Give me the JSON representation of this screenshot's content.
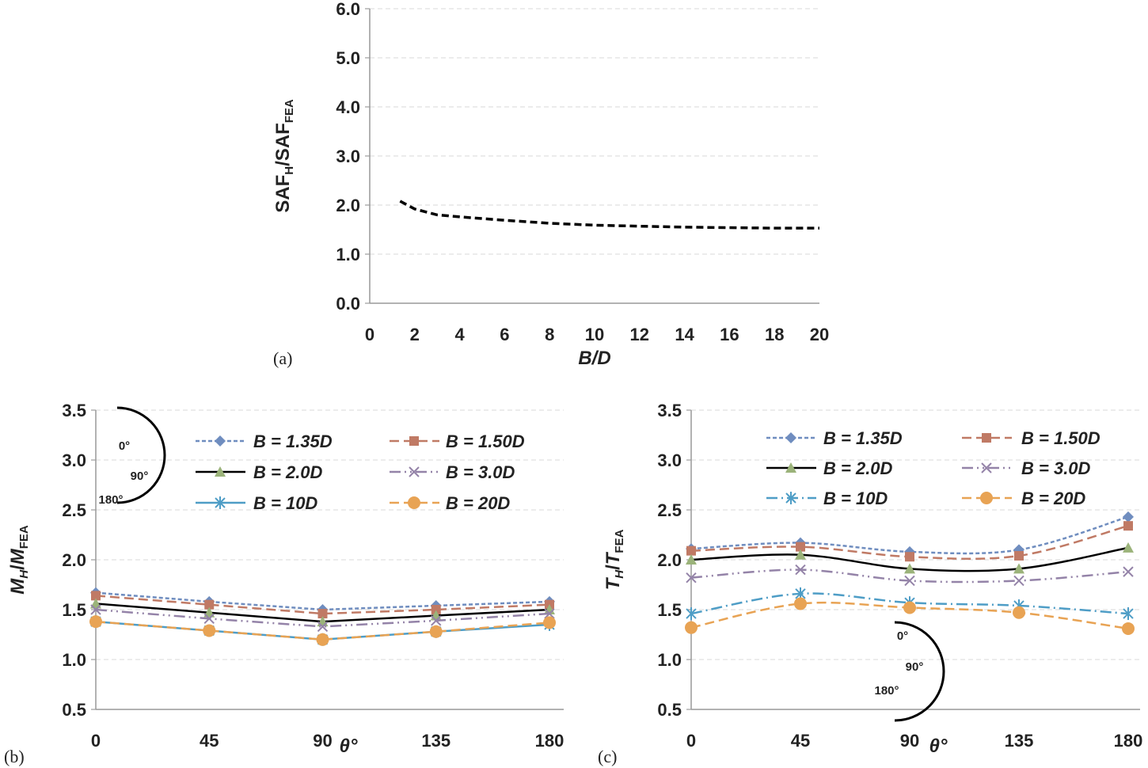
{
  "chart_data": [
    {
      "panel": "(a)",
      "type": "line",
      "xlabel": "B/D",
      "ylabel": [
        [
          "SAF",
          ""
        ],
        [
          "H",
          "sub"
        ],
        [
          "/SAF",
          ""
        ],
        [
          "FEA",
          "sub"
        ]
      ],
      "xlim": [
        0,
        20
      ],
      "ylim": [
        0,
        6
      ],
      "xticks": [
        0,
        2,
        4,
        6,
        8,
        10,
        12,
        14,
        16,
        18,
        20
      ],
      "yticks": [
        "0.0",
        "1.0",
        "2.0",
        "3.0",
        "4.0",
        "5.0",
        "6.0"
      ],
      "grid": true,
      "series": [
        {
          "color": "#000000",
          "style": "dashed",
          "x": [
            1.35,
            2,
            3,
            4,
            6,
            8,
            10,
            12,
            14,
            16,
            18,
            20
          ],
          "y": [
            2.08,
            1.92,
            1.8,
            1.76,
            1.69,
            1.63,
            1.59,
            1.57,
            1.55,
            1.54,
            1.53,
            1.53
          ]
        }
      ]
    },
    {
      "panel": "(b)",
      "type": "line",
      "xlabel": "θ°",
      "ylabel": [
        [
          "M",
          "it"
        ],
        [
          "H",
          "subit"
        ],
        [
          "/",
          ""
        ],
        [
          "M",
          "it"
        ],
        [
          "FEA",
          "sub"
        ]
      ],
      "xlim": [
        0,
        180
      ],
      "ylim": [
        0.5,
        3.5
      ],
      "x": [
        0,
        45,
        90,
        135,
        180
      ],
      "xticks": [
        0,
        45,
        90,
        135,
        180
      ],
      "yticks": [
        "0.5",
        "1.0",
        "1.5",
        "2.0",
        "2.5",
        "3.0",
        "3.5"
      ],
      "grid": true,
      "angle_labels": [
        "0°",
        "90°",
        "180°"
      ],
      "legend": "top-right",
      "series": [
        {
          "name": "B = 1.35D",
          "marker": "diamond",
          "color": "#6f8dbf",
          "dash": "5 3",
          "y": [
            1.67,
            1.58,
            1.5,
            1.54,
            1.58
          ]
        },
        {
          "name": "B = 1.50D",
          "marker": "square",
          "color": "#c07a65",
          "dash": "12 6",
          "y": [
            1.64,
            1.55,
            1.46,
            1.5,
            1.55
          ]
        },
        {
          "name": "B = 2.0D",
          "marker": "triangle",
          "color": "#9bb37a",
          "line": "#000000",
          "dash": "",
          "y": [
            1.56,
            1.47,
            1.38,
            1.44,
            1.5
          ]
        },
        {
          "name": "B = 3.0D",
          "marker": "x",
          "color": "#9483a8",
          "dash": "14 5 2 5 2 5",
          "y": [
            1.5,
            1.41,
            1.33,
            1.39,
            1.46
          ]
        },
        {
          "name": "B = 10D",
          "marker": "asterisk",
          "color": "#4e9dc6",
          "dash": "",
          "y": [
            1.38,
            1.29,
            1.2,
            1.28,
            1.35
          ]
        },
        {
          "name": "B = 20D",
          "marker": "circle",
          "color": "#e8a354",
          "dash": "12 6",
          "y": [
            1.38,
            1.29,
            1.2,
            1.28,
            1.37
          ]
        }
      ]
    },
    {
      "panel": "(c)",
      "type": "line",
      "xlabel": "θ°",
      "ylabel": [
        [
          "T",
          "it"
        ],
        [
          "H",
          "subit"
        ],
        [
          "/",
          ""
        ],
        [
          "T",
          "it"
        ],
        [
          "FEA",
          "sub"
        ]
      ],
      "xlim": [
        0,
        180
      ],
      "ylim": [
        0.5,
        3.5
      ],
      "x": [
        0,
        45,
        90,
        135,
        180
      ],
      "xticks": [
        0,
        45,
        90,
        135,
        180
      ],
      "yticks": [
        "0.5",
        "1.0",
        "1.5",
        "2.0",
        "2.5",
        "3.0",
        "3.5"
      ],
      "grid": true,
      "smooth": true,
      "angle_labels": [
        "0°",
        "90°",
        "180°"
      ],
      "legend": "top",
      "series": [
        {
          "name": "B = 1.35D",
          "marker": "diamond",
          "color": "#6f8dbf",
          "dash": "5 3",
          "y": [
            2.11,
            2.17,
            2.08,
            2.1,
            2.43
          ]
        },
        {
          "name": "B = 1.50D",
          "marker": "square",
          "color": "#c07a65",
          "dash": "12 6",
          "y": [
            2.09,
            2.13,
            2.03,
            2.04,
            2.34
          ]
        },
        {
          "name": "B = 2.0D",
          "marker": "triangle",
          "color": "#9bb37a",
          "line": "#000000",
          "dash": "",
          "y": [
            2.0,
            2.05,
            1.91,
            1.91,
            2.12
          ]
        },
        {
          "name": "B = 3.0D",
          "marker": "x",
          "color": "#9483a8",
          "dash": "14 5 2 5 2 5",
          "y": [
            1.82,
            1.9,
            1.79,
            1.79,
            1.88
          ]
        },
        {
          "name": "B = 10D",
          "marker": "asterisk",
          "color": "#4e9dc6",
          "dash": "14 5 2 5",
          "y": [
            1.46,
            1.66,
            1.57,
            1.54,
            1.46
          ]
        },
        {
          "name": "B = 20D",
          "marker": "circle",
          "color": "#e8a354",
          "dash": "12 6",
          "y": [
            1.32,
            1.56,
            1.52,
            1.47,
            1.31
          ]
        }
      ]
    }
  ]
}
